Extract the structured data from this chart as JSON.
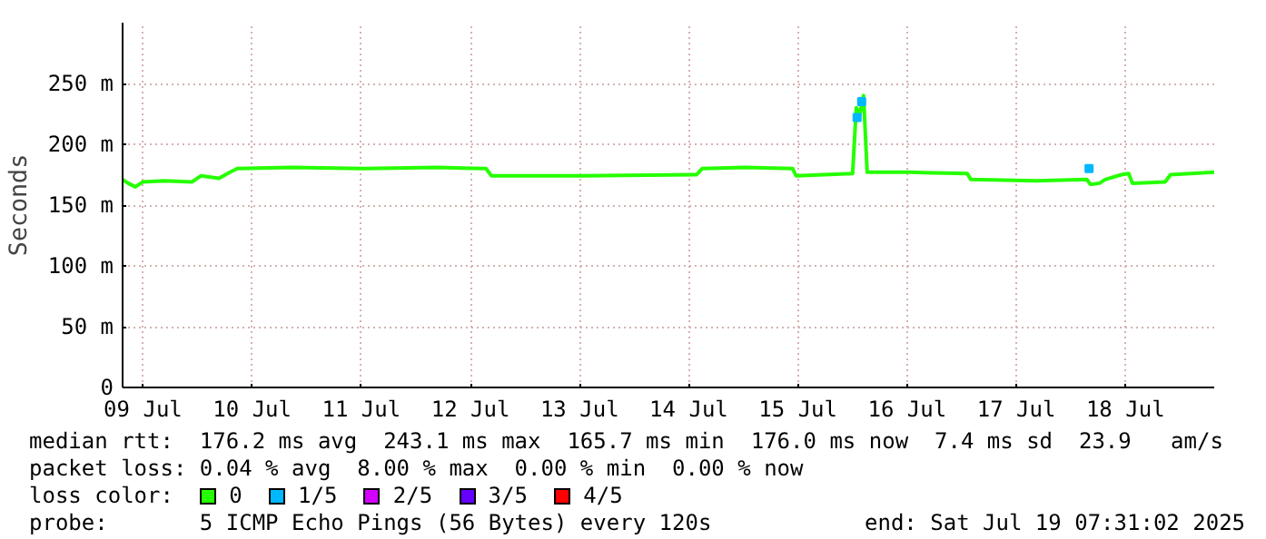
{
  "chart_data": {
    "type": "line",
    "ylabel": "Seconds",
    "xlim": [
      "2025-07-09T07:31",
      "2025-07-19T07:31"
    ],
    "xticks": [
      {
        "value": "2025-07-09T12:00",
        "label": "09 Jul"
      },
      {
        "value": "2025-07-10T12:00",
        "label": "10 Jul"
      },
      {
        "value": "2025-07-11T12:00",
        "label": "11 Jul"
      },
      {
        "value": "2025-07-12T12:00",
        "label": "12 Jul"
      },
      {
        "value": "2025-07-13T12:00",
        "label": "13 Jul"
      },
      {
        "value": "2025-07-14T12:00",
        "label": "14 Jul"
      },
      {
        "value": "2025-07-15T12:00",
        "label": "15 Jul"
      },
      {
        "value": "2025-07-16T12:00",
        "label": "16 Jul"
      },
      {
        "value": "2025-07-17T12:00",
        "label": "17 Jul"
      },
      {
        "value": "2025-07-18T12:00",
        "label": "18 Jul"
      }
    ],
    "ylim": [
      0,
      300
    ],
    "yticks": [
      {
        "value": 0,
        "label": "0"
      },
      {
        "value": 50,
        "label": "50 m"
      },
      {
        "value": 100,
        "label": "100 m"
      },
      {
        "value": 150,
        "label": "150 m"
      },
      {
        "value": 200,
        "label": "200 m"
      },
      {
        "value": 250,
        "label": "250 m"
      }
    ],
    "grid": true,
    "legend": "bottom",
    "legend_title": "loss color:",
    "series": [
      {
        "name": "0",
        "color": "#26ff00",
        "x": [
          "2025-07-09T07:31",
          "2025-07-09T08:43",
          "2025-07-09T10:19",
          "2025-07-09T11:55",
          "2025-07-09T16:43",
          "2025-07-09T22:43",
          "2025-07-10T00:43",
          "2025-07-10T04:43",
          "2025-07-10T07:07",
          "2025-07-10T08:43",
          "2025-07-10T20:37",
          "2025-07-11T12:37",
          "2025-07-12T04:37",
          "2025-07-12T15:25",
          "2025-07-12T16:37",
          "2025-07-13T12:31",
          "2025-07-14T13:43",
          "2025-07-14T14:55",
          "2025-07-15T00:31",
          "2025-07-15T10:49",
          "2025-07-15T11:37",
          "2025-07-16T00:01",
          "2025-07-16T00:49",
          "2025-07-16T01:37",
          "2025-07-16T02:25",
          "2025-07-16T03:13",
          "2025-07-16T12:25",
          "2025-07-17T01:13",
          "2025-07-17T02:01",
          "2025-07-17T16:25",
          "2025-07-18T03:31",
          "2025-07-18T04:19",
          "2025-07-18T06:19",
          "2025-07-18T07:31",
          "2025-07-18T11:07",
          "2025-07-18T12:43",
          "2025-07-18T13:31",
          "2025-07-18T20:43",
          "2025-07-18T21:55",
          "2025-07-19T07:31"
        ],
        "values": [
          171,
          168,
          165,
          169,
          170,
          169,
          174,
          172,
          177,
          180,
          181,
          180,
          181,
          180,
          174,
          174,
          175,
          180,
          181,
          180,
          174,
          176,
          230,
          225,
          240,
          177,
          177,
          176,
          171,
          170,
          171,
          167,
          168,
          171,
          175,
          176,
          168,
          169,
          175,
          177
        ]
      },
      {
        "name": "1/5",
        "color": "#00b8ff",
        "type": "scatter",
        "marker": "square",
        "x": [
          "2025-07-16T01:00",
          "2025-07-16T02:00",
          "2025-07-18T04:00"
        ],
        "values": [
          222,
          235,
          180
        ]
      },
      {
        "name": "2/5",
        "color": "#d400ff",
        "type": "scatter",
        "marker": "square"
      },
      {
        "name": "3/5",
        "color": "#6600ff",
        "type": "scatter",
        "marker": "square"
      },
      {
        "name": "4/5",
        "color": "#ff0000",
        "type": "scatter",
        "marker": "square"
      }
    ],
    "annotations": [
      "median rtt:  176.2 ms avg  243.1 ms max  165.7 ms min  176.0 ms now  7.4 ms sd  23.9   am/s",
      "packet loss: 0.04 % avg  8.00 % max  0.00 % min  0.00 % now",
      "probe:       5 ICMP Echo Pings (56 Bytes) every 120s",
      "end: Sat Jul 19 07:31:02 2025"
    ]
  }
}
